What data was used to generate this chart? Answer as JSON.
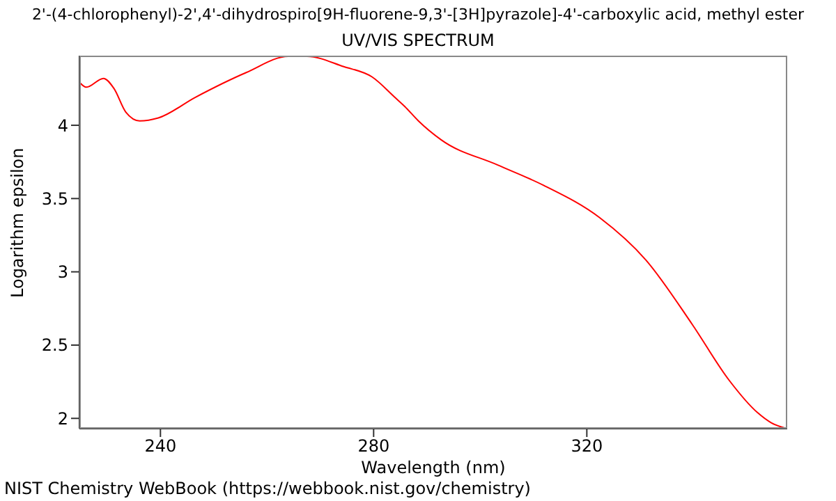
{
  "chart_data": {
    "type": "line",
    "title": "2'-(4-chlorophenyl)-2',4'-dihydrospiro[9H-fluorene-9,3'-[3H]pyrazole]-4'-carboxylic acid, methyl ester",
    "subtitle": "UV/VIS SPECTRUM",
    "xlabel": "Wavelength (nm)",
    "ylabel": "Logarithm epsilon",
    "annotations": [
      "NIST Chemistry WebBook (https://webbook.nist.gov/chemistry)"
    ],
    "x": [
      224.9,
      226.1,
      229.3,
      231.3,
      233.5,
      236.1,
      239.6,
      246.5,
      256.1,
      264,
      267.5,
      274.4,
      279.7,
      284,
      285.8,
      288.4,
      292.7,
      303.2,
      311.9,
      322.4,
      331.1,
      339.8,
      346.7,
      352,
      354.6,
      357.6
    ],
    "series": [
      {
        "color": "#ff0000",
        "values": [
          4.29,
          4.26,
          4.32,
          4.25,
          4.09,
          4.03,
          4.05,
          4.19,
          4.36,
          4.47,
          4.47,
          4.4,
          4.33,
          4.19,
          4.13,
          4.03,
          3.9,
          3.73,
          3.59,
          3.37,
          3.08,
          2.64,
          2.26,
          2.04,
          1.97,
          1.93
        ]
      }
    ],
    "xlim": [
      224.8,
      357.6
    ],
    "xticks": [
      240,
      280,
      320
    ],
    "ylim": [
      1.93,
      4.475
    ],
    "yticks": [
      2,
      2.5,
      3,
      3.5,
      4
    ],
    "grid": false,
    "legend": false,
    "marker": "none",
    "line_style": "solid"
  }
}
